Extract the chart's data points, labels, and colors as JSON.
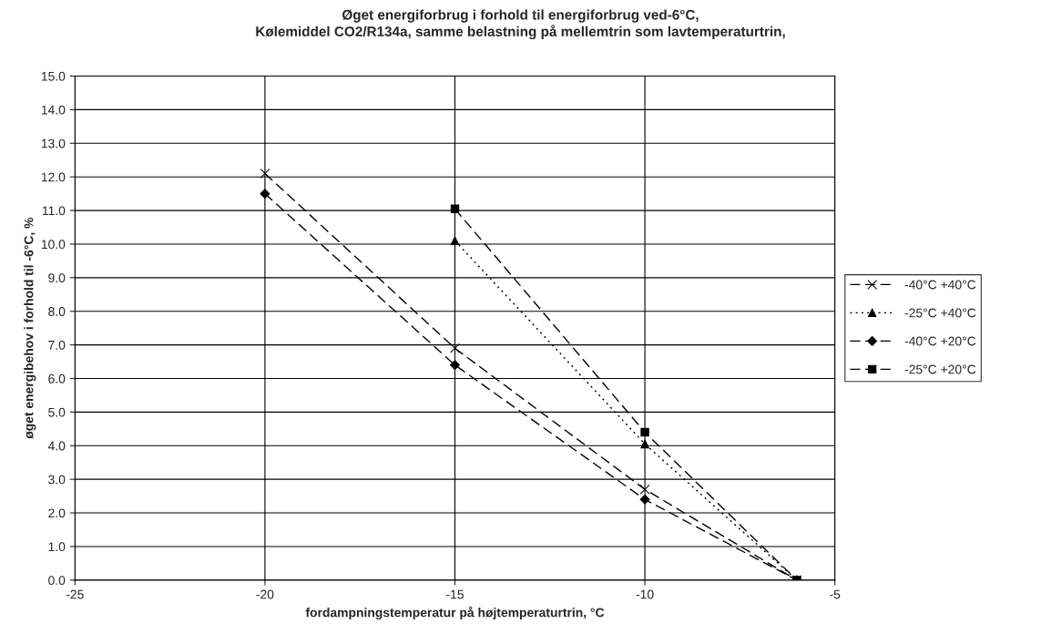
{
  "chart_data": {
    "type": "line",
    "title": "Øget energiforbrug i forhold til energiforbrug ved-6°C,\nKølemiddel CO2/R134a, samme belastning på mellemtrin som lavtemperaturtrin,",
    "xlabel": "fordampningstemperatur på højtemperaturtrin, °C",
    "ylabel": "øget energibehov i forhold til -6°C, %",
    "series": [
      {
        "name": "-40°C +40°C",
        "color": "#000000",
        "marker": "cross",
        "line_style": "dashed",
        "x": [
          -20,
          -15,
          -10,
          -6
        ],
        "values": [
          12.1,
          6.9,
          2.7,
          0.0
        ]
      },
      {
        "name": "-25°C +40°C",
        "color": "#000000",
        "marker": "triangle",
        "line_style": "dotted",
        "x": [
          -15,
          -10,
          -6
        ],
        "values": [
          10.1,
          4.05,
          0.0
        ]
      },
      {
        "name": "-40°C +20°C",
        "color": "#000000",
        "marker": "diamond",
        "line_style": "dashed",
        "x": [
          -20,
          -15,
          -10,
          -6
        ],
        "values": [
          11.5,
          6.4,
          2.4,
          0.0
        ]
      },
      {
        "name": "-25°C +20°C",
        "color": "#000000",
        "marker": "square",
        "line_style": "dashed",
        "x": [
          -15,
          -10,
          -6
        ],
        "values": [
          11.05,
          4.4,
          0.0
        ]
      }
    ],
    "xlim": [
      -25,
      -5
    ],
    "xticks": [
      -25,
      -20,
      -15,
      -10,
      -5
    ],
    "ylim": [
      0,
      15
    ],
    "yticks": [
      {
        "value": 0,
        "label": "0.0"
      },
      {
        "value": 1,
        "label": "1.0"
      },
      {
        "value": 2,
        "label": "2.0"
      },
      {
        "value": 3,
        "label": "3.0"
      },
      {
        "value": 4,
        "label": "4.0"
      },
      {
        "value": 5,
        "label": "5.0"
      },
      {
        "value": 6,
        "label": "6.0"
      },
      {
        "value": 7,
        "label": "7.0"
      },
      {
        "value": 8,
        "label": "8.0"
      },
      {
        "value": 9,
        "label": "9.0"
      },
      {
        "value": 10,
        "label": "10.0"
      },
      {
        "value": 11,
        "label": "11.0"
      },
      {
        "value": 12,
        "label": "12.0"
      },
      {
        "value": 13,
        "label": "13.0"
      },
      {
        "value": 14,
        "label": "14.0"
      },
      {
        "value": 15,
        "label": "15.0"
      }
    ],
    "grid": true,
    "legend": "right"
  }
}
